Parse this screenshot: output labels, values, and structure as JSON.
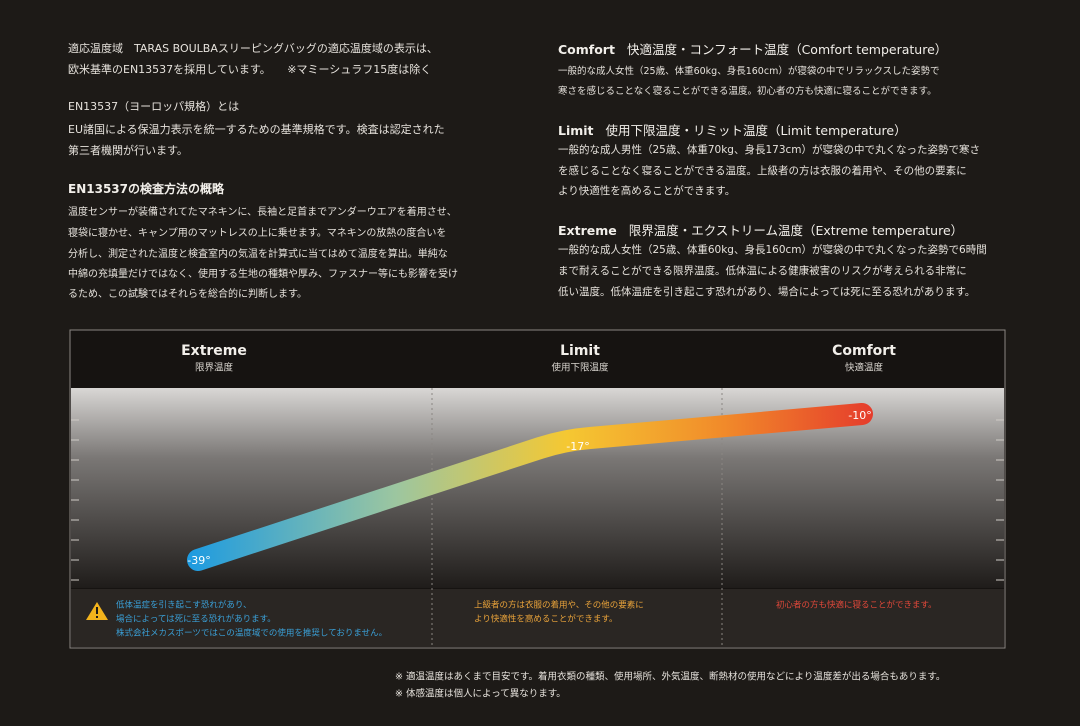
{
  "left": {
    "intro": [
      "適応温度域　TARAS BOULBAスリーピングバッグの適応温度域の表示は、",
      "欧米基準のEN13537を採用しています。　　※マミーシュラフ15度は除く"
    ],
    "en_title": "EN13537（ヨーロッパ規格）とは",
    "en_body": [
      "EU諸国による保温力表示を統一するための基準規格です。検査は認定された",
      "第三者機関が行います。"
    ],
    "method_title": "EN13537の検査方法の概略",
    "method_body": [
      "温度センサーが装備されてたマネキンに、長袖と足首までアンダーウエアを着用させ、",
      "寝袋に寝かせ、キャンプ用のマットレスの上に乗せます。マネキンの放熱の度合いを",
      "分析し、測定された温度と検査室内の気温を計算式に当てはめて温度を算出。単純な",
      "中綿の充填量だけではなく、使用する生地の種類や厚み、ファスナー等にも影響を受け",
      "るため、この試験ではそれらを総合的に判断します。"
    ]
  },
  "right": {
    "ratings": [
      {
        "name": "Comfort",
        "title": "快適温度・コンフォート温度（Comfort temperature）",
        "body": [
          "一般的な成人女性（25歳、体重60kg、身長160cm）が寝袋の中でリラックスした姿勢で",
          "寒さを感じることなく寝ることができる温度。初心者の方も快適に寝ることができます。"
        ]
      },
      {
        "name": "Limit",
        "title": "使用下限温度・リミット温度（Limit temperature）",
        "body": [
          "一般的な成人男性（25歳、体重70kg、身長173cm）が寝袋の中で丸くなった姿勢で寒さ",
          "を感じることなく寝ることができる温度。上級者の方は衣服の着用や、その他の要素に",
          "より快適性を高めることができます。"
        ]
      },
      {
        "name": "Extreme",
        "title": "限界温度・エクストリーム温度（Extreme temperature）",
        "body": [
          "一般的な成人女性（25歳、体重60kg、身長160cm）が寝袋の中で丸くなった姿勢で6時間",
          "まで耐えることができる限界温度。低体温による健康被害のリスクが考えられる非常に",
          "低い温度。低体温症を引き起こす恐れがあり、場合によっては死に至る恐れがあります。"
        ]
      }
    ]
  },
  "chart": {
    "columns": [
      {
        "name": "Extreme",
        "sub": "限界温度",
        "temp": "-39°",
        "note": [
          "低体温症を引き起こす恐れがあり、",
          "場合によっては死に至る恐れがあります。",
          "株式会社メカスポーツではこの温度域での使用を推奨しておりません。"
        ]
      },
      {
        "name": "Limit",
        "sub": "使用下限温度",
        "temp": "-17°",
        "note": [
          "上級者の方は衣服の着用や、その他の要素に",
          "より快適性を高めることができます。"
        ]
      },
      {
        "name": "Comfort",
        "sub": "快適温度",
        "temp": "-10°",
        "note": [
          "初心者の方も快適に寝ることができます。"
        ]
      }
    ]
  },
  "footnotes": [
    "※ 適温温度はあくまで目安です。着用衣類の種類、使用場所、外気温度、断熱材の使用などにより温度差が出る場合もあります。",
    "※ 体感温度は個人によって異なります。"
  ]
}
